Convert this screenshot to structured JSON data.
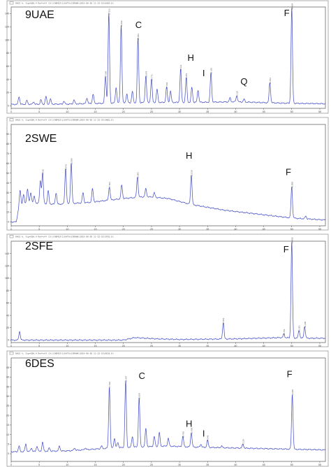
{
  "chart_data": [
    {
      "type": "line",
      "sample_label": "9UAE",
      "header": "DAD1 A, Sig=280,4 Ref=off (D:\\CHEM32\\1\\DATA\\SIMONA\\2019-06-05 11-32-53\\UAE9.D)",
      "xlim": [
        0,
        56
      ],
      "ylim": [
        -4,
        150
      ],
      "x_ticks": [
        0,
        5,
        10,
        15,
        20,
        25,
        30,
        35,
        40,
        45,
        50,
        55
      ],
      "y_ticks": [
        0,
        20,
        40,
        60,
        80,
        100,
        120,
        140
      ],
      "baseline": [
        [
          0,
          2
        ],
        [
          10,
          2.5
        ],
        [
          18,
          4
        ],
        [
          26,
          5
        ],
        [
          32,
          5
        ],
        [
          40,
          6
        ],
        [
          48,
          4
        ],
        [
          56,
          3
        ]
      ],
      "peaks": [
        {
          "x": 1.4,
          "y": 14
        },
        {
          "x": 2.8,
          "y": 8
        },
        {
          "x": 4.0,
          "y": 6
        },
        {
          "x": 5.3,
          "y": 9
        },
        {
          "x": 6.2,
          "y": 14
        },
        {
          "x": 7.0,
          "y": 10
        },
        {
          "x": 9.4,
          "y": 7
        },
        {
          "x": 11.2,
          "y": 9
        },
        {
          "x": 13.5,
          "y": 12
        },
        {
          "x": 14.6,
          "y": 18
        },
        {
          "x": 16.8,
          "y": 45,
          "label": "17.068"
        },
        {
          "x": 17.4,
          "y": 140,
          "label": "17.513"
        },
        {
          "x": 18.7,
          "y": 28
        },
        {
          "x": 19.6,
          "y": 122,
          "label": "19.492"
        },
        {
          "x": 20.6,
          "y": 18
        },
        {
          "x": 21.6,
          "y": 22
        },
        {
          "x": 22.6,
          "y": 102,
          "label": "22.843"
        },
        {
          "x": 24.0,
          "y": 45,
          "label": "23.979"
        },
        {
          "x": 25.0,
          "y": 40,
          "label": "24.773"
        },
        {
          "x": 26.0,
          "y": 25
        },
        {
          "x": 27.7,
          "y": 28,
          "label": "27.603"
        },
        {
          "x": 28.4,
          "y": 22
        },
        {
          "x": 30.2,
          "y": 55,
          "label": "30.121"
        },
        {
          "x": 31.2,
          "y": 42,
          "label": "30.951"
        },
        {
          "x": 32.2,
          "y": 28
        },
        {
          "x": 33.3,
          "y": 24
        },
        {
          "x": 35.6,
          "y": 50,
          "label": "35.335"
        },
        {
          "x": 39.0,
          "y": 12
        },
        {
          "x": 40.2,
          "y": 15,
          "label": "40.110"
        },
        {
          "x": 41.5,
          "y": 10
        },
        {
          "x": 46.1,
          "y": 35,
          "label": "46.152"
        },
        {
          "x": 50.0,
          "y": 148,
          "label": "49.854"
        }
      ],
      "annotations": [
        {
          "text": "C",
          "x": 22.7,
          "y": 118
        },
        {
          "text": "H",
          "x": 32.0,
          "y": 68
        },
        {
          "text": "I",
          "x": 34.3,
          "y": 45
        },
        {
          "text": "Q",
          "x": 41.5,
          "y": 32
        },
        {
          "text": "F",
          "x": 49.1,
          "y": 136
        }
      ]
    },
    {
      "type": "line",
      "sample_label": "2SWE",
      "header": "DAD1 A, Sig=280,4 Ref=off (D:\\CHEM32\\1\\DATA\\SIMONA\\2019-06-05 11-32-53\\SWE2.D)",
      "xlim": [
        0,
        56
      ],
      "ylim": [
        -4,
        100
      ],
      "x_ticks": [
        0,
        5,
        10,
        15,
        20,
        25,
        30,
        35,
        40,
        45,
        50,
        55
      ],
      "y_ticks": [
        0,
        10,
        20,
        30,
        40,
        50,
        60,
        70,
        80,
        90
      ],
      "baseline": [
        [
          0,
          0
        ],
        [
          0.9,
          0
        ],
        [
          1.4,
          16
        ],
        [
          3,
          20
        ],
        [
          8,
          18
        ],
        [
          14,
          20
        ],
        [
          20,
          24
        ],
        [
          24,
          26
        ],
        [
          28,
          24
        ],
        [
          32,
          18
        ],
        [
          38,
          12
        ],
        [
          44,
          8
        ],
        [
          50,
          4
        ],
        [
          56,
          2
        ]
      ],
      "peaks": [
        {
          "x": 1.6,
          "y": 32
        },
        {
          "x": 2.2,
          "y": 28
        },
        {
          "x": 2.9,
          "y": 34
        },
        {
          "x": 3.5,
          "y": 30
        },
        {
          "x": 4.1,
          "y": 26
        },
        {
          "x": 5.2,
          "y": 42
        },
        {
          "x": 5.6,
          "y": 50,
          "label": "5.618"
        },
        {
          "x": 6.6,
          "y": 32
        },
        {
          "x": 8.0,
          "y": 30
        },
        {
          "x": 9.7,
          "y": 55,
          "label": "9.479"
        },
        {
          "x": 10.7,
          "y": 60,
          "label": "10.589"
        },
        {
          "x": 12.8,
          "y": 30
        },
        {
          "x": 14.5,
          "y": 34
        },
        {
          "x": 17.5,
          "y": 36,
          "label": "17.501"
        },
        {
          "x": 19.7,
          "y": 38
        },
        {
          "x": 22.5,
          "y": 46,
          "label": "22.502"
        },
        {
          "x": 24.0,
          "y": 34
        },
        {
          "x": 25.5,
          "y": 30
        },
        {
          "x": 32.1,
          "y": 48,
          "label": "32.019"
        },
        {
          "x": 50.0,
          "y": 36,
          "label": "49.858"
        },
        {
          "x": 52.5,
          "y": 6
        }
      ],
      "annotations": [
        {
          "text": "H",
          "x": 31.7,
          "y": 65
        },
        {
          "text": "F",
          "x": 49.4,
          "y": 48
        }
      ]
    },
    {
      "type": "line",
      "sample_label": "2SFE",
      "header": "DAD1 A, Sig=280,4 Ref=off (D:\\CHEM32\\1\\DATA\\SIMONA\\2019-06-05 11-32-53\\SFE2.D)",
      "xlim": [
        0,
        56
      ],
      "ylim": [
        -4,
        160
      ],
      "x_ticks": [
        0,
        5,
        10,
        15,
        20,
        25,
        30,
        35,
        40,
        45,
        50,
        55
      ],
      "y_ticks": [
        0,
        20,
        40,
        60,
        80,
        100,
        120,
        140
      ],
      "baseline": [
        [
          0,
          0
        ],
        [
          10,
          0
        ],
        [
          20,
          0
        ],
        [
          22,
          4
        ],
        [
          26,
          2
        ],
        [
          30,
          1
        ],
        [
          40,
          2
        ],
        [
          48,
          4
        ],
        [
          52,
          3
        ],
        [
          56,
          3
        ]
      ],
      "peaks": [
        {
          "x": 1.5,
          "y": 14
        },
        {
          "x": 37.8,
          "y": 28,
          "label": "37.861"
        },
        {
          "x": 48.6,
          "y": 10,
          "label": "48.701"
        },
        {
          "x": 50.0,
          "y": 158,
          "label": "49.859"
        },
        {
          "x": 51.3,
          "y": 16,
          "label": "51.201"
        },
        {
          "x": 52.3,
          "y": 22,
          "label": "52.260"
        }
      ],
      "annotations": [
        {
          "text": "F",
          "x": 49.0,
          "y": 142
        }
      ]
    },
    {
      "type": "line",
      "sample_label": "6DES",
      "header": "DAD1 A, Sig=280,4 Ref=off (D:\\CHEM32\\1\\DATA\\SIMONA\\2019-06-05 11-32-53\\DES6.D)",
      "xlim": [
        0,
        56
      ],
      "ylim": [
        -4,
        50
      ],
      "x_ticks": [
        0,
        5,
        10,
        15,
        20,
        25,
        30,
        35,
        40,
        45,
        50,
        55
      ],
      "y_ticks": [
        0,
        5,
        10,
        15,
        20,
        25,
        30,
        35,
        40,
        45
      ],
      "baseline": [
        [
          0,
          1
        ],
        [
          10,
          1.5
        ],
        [
          18,
          3
        ],
        [
          22,
          3.5
        ],
        [
          28,
          4
        ],
        [
          32,
          3.5
        ],
        [
          40,
          3
        ],
        [
          48,
          2.5
        ],
        [
          56,
          2
        ]
      ],
      "peaks": [
        {
          "x": 1.4,
          "y": 4
        },
        {
          "x": 2.6,
          "y": 5
        },
        {
          "x": 3.6,
          "y": 3
        },
        {
          "x": 4.6,
          "y": 4
        },
        {
          "x": 5.6,
          "y": 6
        },
        {
          "x": 6.8,
          "y": 3
        },
        {
          "x": 8.6,
          "y": 4
        },
        {
          "x": 11.3,
          "y": 3
        },
        {
          "x": 13.2,
          "y": 3
        },
        {
          "x": 16.1,
          "y": 4
        },
        {
          "x": 17.5,
          "y": 35,
          "label": "17.510"
        },
        {
          "x": 18.4,
          "y": 8
        },
        {
          "x": 19.0,
          "y": 6
        },
        {
          "x": 20.4,
          "y": 38,
          "label": "20.497"
        },
        {
          "x": 21.6,
          "y": 9
        },
        {
          "x": 22.8,
          "y": 29,
          "label": "22.828"
        },
        {
          "x": 24.0,
          "y": 13
        },
        {
          "x": 25.5,
          "y": 9
        },
        {
          "x": 26.4,
          "y": 11
        },
        {
          "x": 28.0,
          "y": 8
        },
        {
          "x": 30.6,
          "y": 9,
          "label": "30.790"
        },
        {
          "x": 32.1,
          "y": 11,
          "label": "32.050"
        },
        {
          "x": 33.8,
          "y": 5
        },
        {
          "x": 35.0,
          "y": 7,
          "label": "34.943"
        },
        {
          "x": 37.5,
          "y": 4
        },
        {
          "x": 41.3,
          "y": 5,
          "label": "41.118"
        },
        {
          "x": 50.1,
          "y": 31,
          "label": "49.910"
        }
      ],
      "annotations": [
        {
          "text": "C",
          "x": 23.3,
          "y": 39
        },
        {
          "text": "H",
          "x": 31.7,
          "y": 14
        },
        {
          "text": "I",
          "x": 34.3,
          "y": 9
        },
        {
          "text": "F",
          "x": 49.6,
          "y": 40
        }
      ]
    }
  ]
}
